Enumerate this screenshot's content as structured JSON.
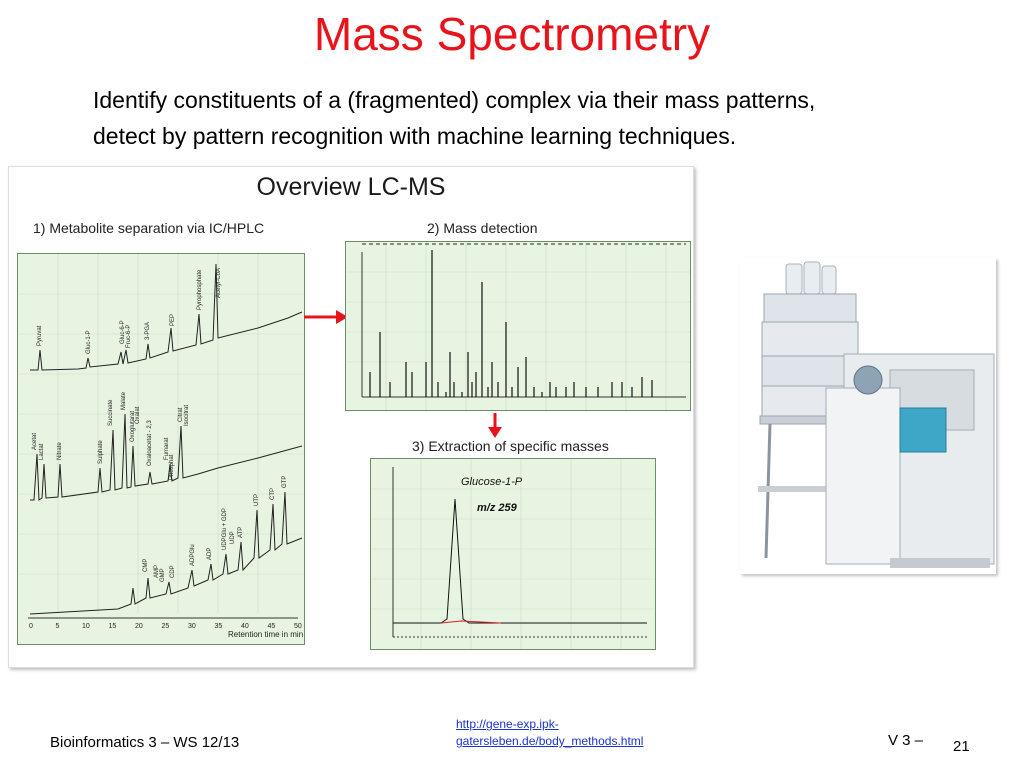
{
  "slide": {
    "title": "Mass Spectrometry",
    "subtitle_line1": "Identify constituents of a (fragmented) complex via their mass patterns,",
    "subtitle_line2": "detect by pattern recognition with machine learning techniques."
  },
  "figure": {
    "title": "Overview LC-MS",
    "step1": "1) Metabolite separation via IC/HPLC",
    "step2": "2) Mass detection",
    "step3": "3) Extraction of specific masses",
    "chromatogram": {
      "x_label": "Retention time in min",
      "x_ticks": [
        "0",
        "5",
        "10",
        "15",
        "20",
        "25",
        "30",
        "35",
        "40",
        "45",
        "50"
      ],
      "trace1_peaks": [
        "Pyruvat",
        "Gluc-1-P",
        "Gluc-6-P",
        "Fruc-6-P",
        "3-PGA",
        "PEP",
        "Pyrophosphate",
        "Acetyl-CoA"
      ],
      "trace2_peaks": [
        "Acetat",
        "Lactat",
        "Nitrate",
        "Sulphate",
        "Succinate",
        "Malate",
        "Oxoglutarat",
        "Oxalat",
        "Oxaloacetat - 2,3",
        "Fumarat",
        "Phosphat",
        "Citrat",
        "Isocitrat"
      ],
      "trace3_peaks": [
        "CMP",
        "AMP",
        "GMP",
        "CDP",
        "ADPGlu",
        "ADP",
        "UDPGlu + GDP",
        "UDP",
        "ATP",
        "UTP",
        "CTP",
        "GTP"
      ]
    },
    "extraction": {
      "compound": "Glucose-1-P",
      "mz": "m/z 259"
    }
  },
  "footer": {
    "course": "Bioinformatics 3 – WS 12/13",
    "link_line1": "http://gene-exp.ipk-",
    "link_line2": "gatersleben.de/body_methods.html",
    "lecture": "V 3 –",
    "page": "21"
  },
  "colors": {
    "title": "#e8141c",
    "arrow": "#e8141c",
    "link": "#1a33cc",
    "panel_bg": "#e8f4e2"
  }
}
